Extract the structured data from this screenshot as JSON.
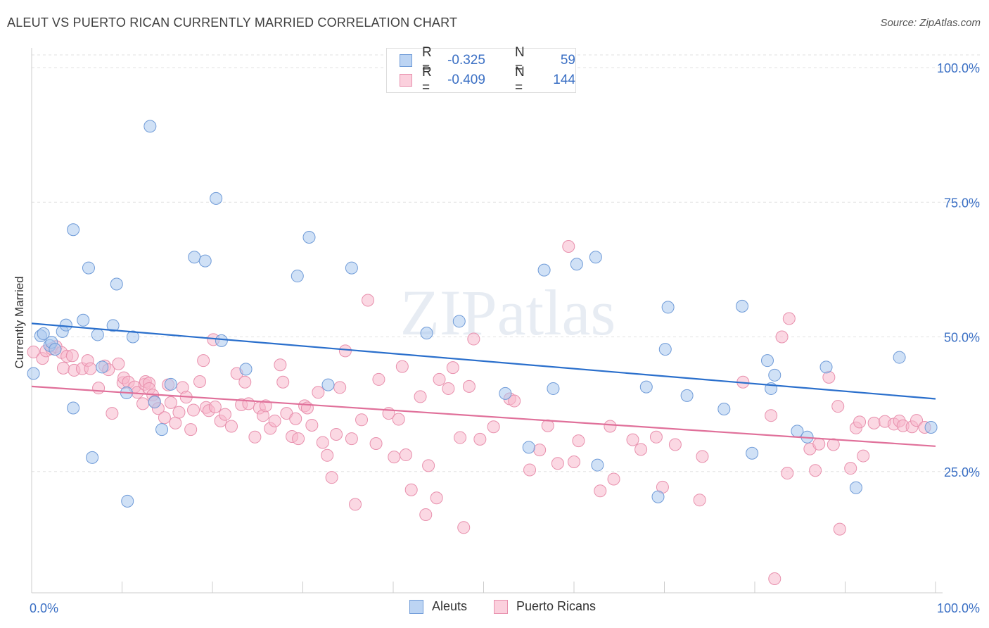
{
  "title": "ALEUT VS PUERTO RICAN CURRENTLY MARRIED CORRELATION CHART",
  "source": "Source: ZipAtlas.com",
  "watermark": "ZIPatlas",
  "colors": {
    "blue_fill": "#a9c8ef",
    "blue_stroke": "#6f9bd8",
    "blue_line": "#2a6fcc",
    "pink_fill": "#f7b8cc",
    "pink_stroke": "#e890ad",
    "pink_line": "#e0709a",
    "axis_text_blue": "#3a6fc4"
  },
  "legend": {
    "rows": [
      {
        "r_label": "R =",
        "r_value": "-0.325",
        "n_label": "N =",
        "n_value": "59"
      },
      {
        "r_label": "R =",
        "r_value": "-0.409",
        "n_label": "N =",
        "n_value": "144"
      }
    ]
  },
  "bottom_legend": [
    "Aleuts",
    "Puerto Ricans"
  ],
  "chart_data": {
    "type": "scatter",
    "title": "ALEUT VS PUERTO RICAN CURRENTLY MARRIED CORRELATION CHART",
    "xlabel": "",
    "ylabel": "Currently Married",
    "xlim": [
      0,
      100
    ],
    "ylim": [
      0,
      100
    ],
    "x_tick_labels": [
      "0.0%",
      "100.0%"
    ],
    "y_tick_labels": [
      "25.0%",
      "50.0%",
      "75.0%",
      "100.0%"
    ],
    "y_ticks": [
      25,
      50,
      75,
      100
    ],
    "grid": "horizontal dashed",
    "legend_position": "top-center",
    "series": [
      {
        "name": "Aleuts",
        "color": "#a9c8ef",
        "trend": {
          "x": [
            0,
            100
          ],
          "y": [
            52.5,
            38.5
          ]
        },
        "points": [
          [
            0.2,
            43.2
          ],
          [
            1.0,
            50.2
          ],
          [
            1.3,
            50.6
          ],
          [
            2.0,
            48.4
          ],
          [
            2.2,
            49.0
          ],
          [
            2.6,
            47.7
          ],
          [
            3.4,
            51.0
          ],
          [
            3.8,
            52.2
          ],
          [
            4.6,
            36.8
          ],
          [
            4.6,
            69.9
          ],
          [
            5.7,
            53.1
          ],
          [
            6.3,
            62.8
          ],
          [
            6.7,
            27.6
          ],
          [
            7.3,
            50.4
          ],
          [
            7.8,
            44.4
          ],
          [
            9.0,
            52.1
          ],
          [
            9.4,
            59.8
          ],
          [
            10.5,
            39.6
          ],
          [
            10.6,
            19.5
          ],
          [
            11.2,
            50.0
          ],
          [
            13.1,
            89.1
          ],
          [
            13.6,
            37.9
          ],
          [
            14.4,
            32.8
          ],
          [
            15.4,
            41.2
          ],
          [
            18.0,
            64.8
          ],
          [
            19.2,
            64.1
          ],
          [
            20.4,
            75.7
          ],
          [
            21.0,
            49.3
          ],
          [
            23.7,
            44.0
          ],
          [
            29.4,
            61.3
          ],
          [
            30.7,
            68.5
          ],
          [
            32.8,
            41.1
          ],
          [
            35.4,
            62.8
          ],
          [
            43.7,
            50.7
          ],
          [
            47.3,
            52.9
          ],
          [
            52.4,
            39.5
          ],
          [
            55.0,
            29.5
          ],
          [
            56.7,
            62.4
          ],
          [
            57.7,
            40.4
          ],
          [
            60.3,
            63.5
          ],
          [
            62.4,
            64.8
          ],
          [
            62.6,
            26.2
          ],
          [
            68.0,
            40.7
          ],
          [
            69.3,
            20.3
          ],
          [
            70.1,
            47.7
          ],
          [
            70.4,
            55.5
          ],
          [
            72.5,
            39.1
          ],
          [
            76.6,
            36.6
          ],
          [
            78.6,
            55.7
          ],
          [
            79.7,
            28.4
          ],
          [
            81.4,
            45.6
          ],
          [
            81.8,
            40.4
          ],
          [
            82.2,
            42.9
          ],
          [
            84.7,
            32.5
          ],
          [
            85.8,
            31.4
          ],
          [
            87.9,
            44.4
          ],
          [
            91.2,
            22.0
          ],
          [
            96.0,
            46.2
          ],
          [
            99.5,
            33.2
          ]
        ]
      },
      {
        "name": "Puerto Ricans",
        "color": "#f7b8cc",
        "trend": {
          "x": [
            0,
            100
          ],
          "y": [
            40.8,
            29.7
          ]
        },
        "points": [
          [
            0.2,
            47.2
          ],
          [
            1.2,
            46.0
          ],
          [
            1.6,
            47.4
          ],
          [
            2.2,
            47.8
          ],
          [
            2.7,
            48.2
          ],
          [
            3.3,
            47.1
          ],
          [
            3.5,
            44.2
          ],
          [
            3.9,
            46.4
          ],
          [
            4.5,
            46.5
          ],
          [
            4.7,
            43.8
          ],
          [
            5.6,
            44.1
          ],
          [
            6.2,
            45.6
          ],
          [
            6.5,
            44.1
          ],
          [
            7.4,
            40.5
          ],
          [
            8.1,
            44.6
          ],
          [
            8.5,
            43.9
          ],
          [
            8.9,
            35.8
          ],
          [
            9.6,
            45.0
          ],
          [
            10.1,
            41.5
          ],
          [
            10.2,
            42.4
          ],
          [
            10.7,
            41.6
          ],
          [
            11.4,
            40.7
          ],
          [
            11.7,
            39.7
          ],
          [
            12.3,
            37.6
          ],
          [
            12.5,
            41.2
          ],
          [
            12.6,
            41.7
          ],
          [
            13.0,
            41.4
          ],
          [
            13.0,
            40.4
          ],
          [
            13.4,
            39.2
          ],
          [
            13.6,
            38.0
          ],
          [
            14.0,
            36.7
          ],
          [
            14.7,
            35.0
          ],
          [
            15.1,
            41.1
          ],
          [
            15.4,
            37.8
          ],
          [
            15.9,
            34.0
          ],
          [
            16.3,
            36.0
          ],
          [
            16.7,
            40.6
          ],
          [
            17.1,
            38.8
          ],
          [
            17.6,
            32.8
          ],
          [
            17.9,
            36.4
          ],
          [
            18.6,
            41.7
          ],
          [
            19.0,
            45.6
          ],
          [
            19.3,
            36.9
          ],
          [
            19.6,
            36.3
          ],
          [
            20.1,
            49.5
          ],
          [
            20.3,
            37.0
          ],
          [
            20.9,
            34.4
          ],
          [
            21.4,
            35.6
          ],
          [
            22.1,
            33.4
          ],
          [
            22.7,
            43.2
          ],
          [
            23.2,
            37.4
          ],
          [
            23.6,
            41.6
          ],
          [
            24.0,
            37.6
          ],
          [
            24.7,
            31.4
          ],
          [
            25.2,
            36.8
          ],
          [
            25.6,
            35.4
          ],
          [
            25.9,
            37.2
          ],
          [
            26.4,
            33.0
          ],
          [
            26.9,
            34.4
          ],
          [
            27.5,
            44.8
          ],
          [
            27.8,
            41.6
          ],
          [
            28.2,
            35.8
          ],
          [
            28.8,
            31.5
          ],
          [
            29.2,
            34.8
          ],
          [
            29.5,
            31.1
          ],
          [
            30.2,
            37.2
          ],
          [
            30.5,
            36.8
          ],
          [
            31.0,
            33.6
          ],
          [
            31.7,
            39.7
          ],
          [
            32.2,
            30.4
          ],
          [
            32.7,
            28.0
          ],
          [
            33.2,
            23.9
          ],
          [
            33.7,
            31.9
          ],
          [
            34.1,
            40.6
          ],
          [
            34.7,
            47.4
          ],
          [
            35.4,
            31.1
          ],
          [
            35.8,
            18.9
          ],
          [
            36.5,
            34.6
          ],
          [
            37.2,
            56.8
          ],
          [
            38.1,
            30.2
          ],
          [
            38.4,
            42.1
          ],
          [
            39.5,
            35.8
          ],
          [
            40.1,
            27.7
          ],
          [
            40.6,
            34.7
          ],
          [
            41.0,
            44.5
          ],
          [
            41.4,
            28.1
          ],
          [
            42.0,
            21.6
          ],
          [
            43.0,
            38.9
          ],
          [
            43.6,
            17.0
          ],
          [
            43.9,
            26.1
          ],
          [
            44.8,
            20.1
          ],
          [
            45.1,
            42.1
          ],
          [
            46.1,
            40.4
          ],
          [
            46.6,
            44.3
          ],
          [
            47.4,
            31.3
          ],
          [
            47.8,
            14.6
          ],
          [
            48.4,
            40.8
          ],
          [
            48.9,
            49.6
          ],
          [
            49.6,
            31.0
          ],
          [
            51.1,
            33.3
          ],
          [
            52.9,
            38.5
          ],
          [
            53.4,
            38.1
          ],
          [
            55.1,
            25.3
          ],
          [
            56.2,
            29.0
          ],
          [
            57.1,
            33.5
          ],
          [
            58.2,
            26.5
          ],
          [
            59.4,
            66.8
          ],
          [
            60.0,
            26.8
          ],
          [
            60.5,
            30.7
          ],
          [
            62.9,
            21.4
          ],
          [
            64.0,
            33.4
          ],
          [
            64.4,
            23.6
          ],
          [
            66.5,
            30.9
          ],
          [
            67.4,
            29.1
          ],
          [
            69.1,
            31.4
          ],
          [
            69.8,
            22.1
          ],
          [
            71.2,
            30.0
          ],
          [
            73.9,
            19.7
          ],
          [
            74.2,
            27.8
          ],
          [
            78.7,
            41.6
          ],
          [
            81.8,
            35.4
          ],
          [
            82.2,
            5.1
          ],
          [
            83.0,
            50.0
          ],
          [
            83.6,
            24.7
          ],
          [
            83.8,
            53.4
          ],
          [
            86.1,
            29.2
          ],
          [
            86.7,
            25.2
          ],
          [
            87.1,
            30.1
          ],
          [
            88.2,
            42.5
          ],
          [
            88.7,
            30.0
          ],
          [
            89.2,
            37.1
          ],
          [
            89.4,
            14.3
          ],
          [
            90.6,
            25.6
          ],
          [
            91.2,
            33.1
          ],
          [
            91.6,
            34.2
          ],
          [
            92.0,
            27.9
          ],
          [
            93.2,
            34.0
          ],
          [
            94.4,
            34.3
          ],
          [
            95.4,
            33.8
          ],
          [
            96.0,
            34.4
          ],
          [
            96.4,
            33.5
          ],
          [
            97.4,
            33.3
          ],
          [
            97.9,
            34.5
          ],
          [
            98.8,
            33.2
          ]
        ]
      }
    ]
  }
}
